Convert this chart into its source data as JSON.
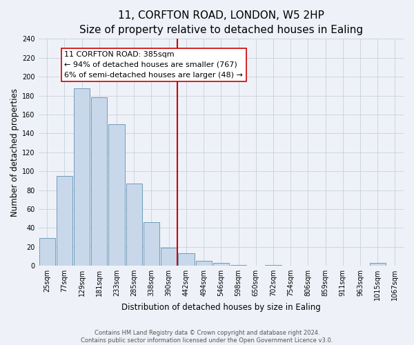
{
  "title": "11, CORFTON ROAD, LONDON, W5 2HP",
  "subtitle": "Size of property relative to detached houses in Ealing",
  "xlabel": "Distribution of detached houses by size in Ealing",
  "ylabel": "Number of detached properties",
  "bar_labels": [
    "25sqm",
    "77sqm",
    "129sqm",
    "181sqm",
    "233sqm",
    "285sqm",
    "338sqm",
    "390sqm",
    "442sqm",
    "494sqm",
    "546sqm",
    "598sqm",
    "650sqm",
    "702sqm",
    "754sqm",
    "806sqm",
    "859sqm",
    "911sqm",
    "963sqm",
    "1015sqm",
    "1067sqm"
  ],
  "bar_heights": [
    29,
    95,
    188,
    178,
    150,
    87,
    46,
    19,
    13,
    5,
    3,
    1,
    0,
    1,
    0,
    0,
    0,
    0,
    0,
    3,
    0
  ],
  "bar_color": "#c8d8ea",
  "bar_edge_color": "#6090b0",
  "vline_x": 7.5,
  "vline_color": "#cc0000",
  "annotation_line1": "11 CORFTON ROAD: 385sqm",
  "annotation_line2": "← 94% of detached houses are smaller (767)",
  "annotation_line3": "6% of semi-detached houses are larger (48) →",
  "annotation_box_color": "#ffffff",
  "annotation_box_edge_color": "#cc0000",
  "ylim": [
    0,
    240
  ],
  "yticks": [
    0,
    20,
    40,
    60,
    80,
    100,
    120,
    140,
    160,
    180,
    200,
    220,
    240
  ],
  "footer_line1": "Contains HM Land Registry data © Crown copyright and database right 2024.",
  "footer_line2": "Contains public sector information licensed under the Open Government Licence v3.0.",
  "background_color": "#eef2f8",
  "grid_color": "#c8d0dc",
  "title_fontsize": 11,
  "subtitle_fontsize": 9.5,
  "axis_label_fontsize": 8.5,
  "tick_fontsize": 7,
  "annotation_fontsize": 8,
  "footer_fontsize": 6
}
